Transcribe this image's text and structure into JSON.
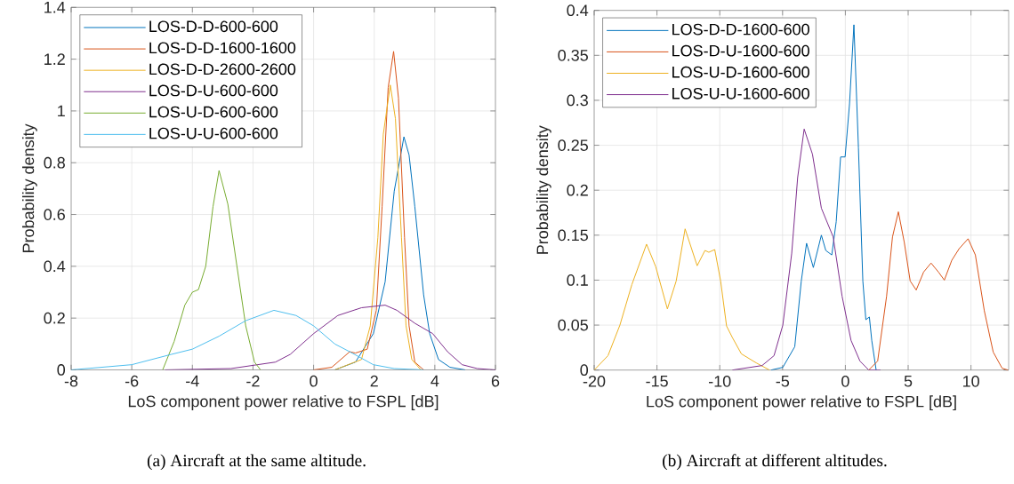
{
  "chart_data": [
    {
      "type": "line",
      "xlabel": "LoS component power relative to FSPL [dB]",
      "ylabel": "Probability density",
      "annotations": [
        "(a) Aircraft at the same altitude."
      ],
      "xlim": [
        -8,
        6
      ],
      "ylim": [
        0,
        1.4
      ],
      "xticks": [
        -8,
        -6,
        -4,
        -2,
        0,
        2,
        4,
        6
      ],
      "yticks": [
        0,
        0.2,
        0.4,
        0.6,
        0.8,
        1,
        1.2,
        1.4
      ],
      "grid": true,
      "legend": "top left",
      "line_style": "solid",
      "series": [
        {
          "name": "LOS-D-D-600-600",
          "color": "#0072bd",
          "x": [
            0.7,
            1.38,
            1.97,
            2.36,
            2.66,
            2.98,
            3.15,
            3.34,
            3.63,
            3.83,
            4.12,
            4.5,
            5.0
          ],
          "values": [
            0,
            0.03,
            0.14,
            0.34,
            0.69,
            0.9,
            0.83,
            0.63,
            0.29,
            0.14,
            0.04,
            0.01,
            0
          ]
        },
        {
          "name": "LOS-D-D-1600-1600",
          "color": "#d95319",
          "x": [
            0,
            0.6,
            1.19,
            1.38,
            1.77,
            2.07,
            2.26,
            2.46,
            2.64,
            2.8,
            3.0,
            3.15,
            3.34,
            3.63
          ],
          "values": [
            0,
            0.01,
            0.07,
            0.065,
            0.08,
            0.23,
            0.63,
            1.09,
            1.23,
            1.05,
            0.51,
            0.17,
            0.03,
            0
          ]
        },
        {
          "name": "LOS-D-D-2600-2600",
          "color": "#edb120",
          "x": [
            0.7,
            1.58,
            1.87,
            2.12,
            2.3,
            2.53,
            2.7,
            2.9,
            3.05,
            3.24,
            3.54
          ],
          "values": [
            0,
            0.04,
            0.17,
            0.51,
            0.91,
            1.1,
            0.97,
            0.51,
            0.17,
            0.04,
            0
          ]
        },
        {
          "name": "LOS-D-U-600-600",
          "color": "#7e2f8e",
          "x": [
            -4.9,
            -2.73,
            -1.26,
            -0.77,
            0,
            0.8,
            1.58,
            2.36,
            2.75,
            3.34,
            3.93,
            4.42,
            4.9,
            5.4,
            6
          ],
          "values": [
            0,
            0.005,
            0.03,
            0.06,
            0.14,
            0.21,
            0.24,
            0.25,
            0.23,
            0.18,
            0.14,
            0.07,
            0.02,
            0.005,
            0
          ]
        },
        {
          "name": "LOS-U-D-600-600",
          "color": "#77ac30",
          "x": [
            -4.98,
            -4.6,
            -4.25,
            -4.0,
            -3.8,
            -3.56,
            -3.32,
            -3.12,
            -2.83,
            -2.53,
            -2.24,
            -1.95,
            -1.75
          ],
          "values": [
            0,
            0.11,
            0.25,
            0.3,
            0.31,
            0.4,
            0.63,
            0.77,
            0.64,
            0.4,
            0.17,
            0.03,
            0
          ]
        },
        {
          "name": "LOS-U-U-600-600",
          "color": "#4dbeee",
          "x": [
            -8,
            -6,
            -4.69,
            -4.0,
            -3.12,
            -2.24,
            -1.31,
            -0.58,
            0,
            0.7,
            1.19,
            1.97,
            2.66,
            3.63
          ],
          "values": [
            0,
            0.02,
            0.06,
            0.08,
            0.13,
            0.19,
            0.23,
            0.21,
            0.17,
            0.1,
            0.07,
            0.02,
            0.005,
            0
          ]
        }
      ]
    },
    {
      "type": "line",
      "xlabel": "LoS component power relative to FSPL [dB]",
      "ylabel": "Probability density",
      "annotations": [
        "(b) Aircraft at different altitudes."
      ],
      "xlim": [
        -20,
        13
      ],
      "ylim": [
        0,
        0.4
      ],
      "xticks": [
        -20,
        -15,
        -10,
        -5,
        0,
        5,
        10
      ],
      "yticks": [
        0,
        0.05,
        0.1,
        0.15,
        0.2,
        0.25,
        0.3,
        0.35,
        0.4
      ],
      "grid": true,
      "legend": "top left",
      "line_style": "solid",
      "series": [
        {
          "name": "LOS-D-D-1600-600",
          "color": "#0072bd",
          "x": [
            -5.92,
            -4.98,
            -4.03,
            -3.51,
            -3.09,
            -2.55,
            -1.91,
            -1.56,
            -1.08,
            -0.73,
            -0.38,
            -0.02,
            0.33,
            0.68,
            1.04,
            1.39,
            1.63,
            1.91,
            2.1,
            2.45
          ],
          "values": [
            0,
            0.003,
            0.026,
            0.099,
            0.141,
            0.114,
            0.15,
            0.133,
            0.128,
            0.165,
            0.237,
            0.237,
            0.296,
            0.384,
            0.247,
            0.099,
            0.056,
            0.059,
            0.033,
            0
          ]
        },
        {
          "name": "LOS-D-U-1600-600",
          "color": "#d95319",
          "x": [
            1.86,
            2.57,
            3.28,
            3.75,
            4.22,
            4.69,
            5.16,
            5.64,
            6.23,
            6.82,
            7.41,
            7.88,
            8.47,
            9.06,
            9.77,
            10.35,
            11.06,
            11.77,
            12.48,
            12.95
          ],
          "values": [
            0,
            0.01,
            0.082,
            0.148,
            0.176,
            0.142,
            0.099,
            0.089,
            0.109,
            0.119,
            0.109,
            0.1,
            0.122,
            0.135,
            0.146,
            0.128,
            0.066,
            0.02,
            0.002,
            0
          ]
        },
        {
          "name": "LOS-U-D-1600-600",
          "color": "#edb120",
          "x": [
            -20,
            -18.9,
            -17.95,
            -17.0,
            -15.83,
            -15.1,
            -14.17,
            -13.47,
            -12.76,
            -11.8,
            -11.18,
            -10.87,
            -10.4,
            -9.93,
            -9.46,
            -8.99,
            -8.28,
            -7.1,
            -6.04
          ],
          "values": [
            0,
            0.016,
            0.05,
            0.095,
            0.14,
            0.115,
            0.068,
            0.099,
            0.157,
            0.116,
            0.133,
            0.131,
            0.134,
            0.099,
            0.049,
            0.036,
            0.018,
            0.008,
            0
          ]
        },
        {
          "name": "LOS-U-U-1600-600",
          "color": "#7e2f8e",
          "x": [
            -9,
            -6.63,
            -5.68,
            -4.98,
            -4.27,
            -3.8,
            -3.28,
            -2.62,
            -1.91,
            -0.97,
            -0.26,
            0.45,
            1.16,
            1.86,
            2.8
          ],
          "values": [
            0,
            0.005,
            0.016,
            0.05,
            0.13,
            0.214,
            0.268,
            0.24,
            0.18,
            0.148,
            0.082,
            0.033,
            0.01,
            0,
            0
          ]
        }
      ]
    }
  ]
}
